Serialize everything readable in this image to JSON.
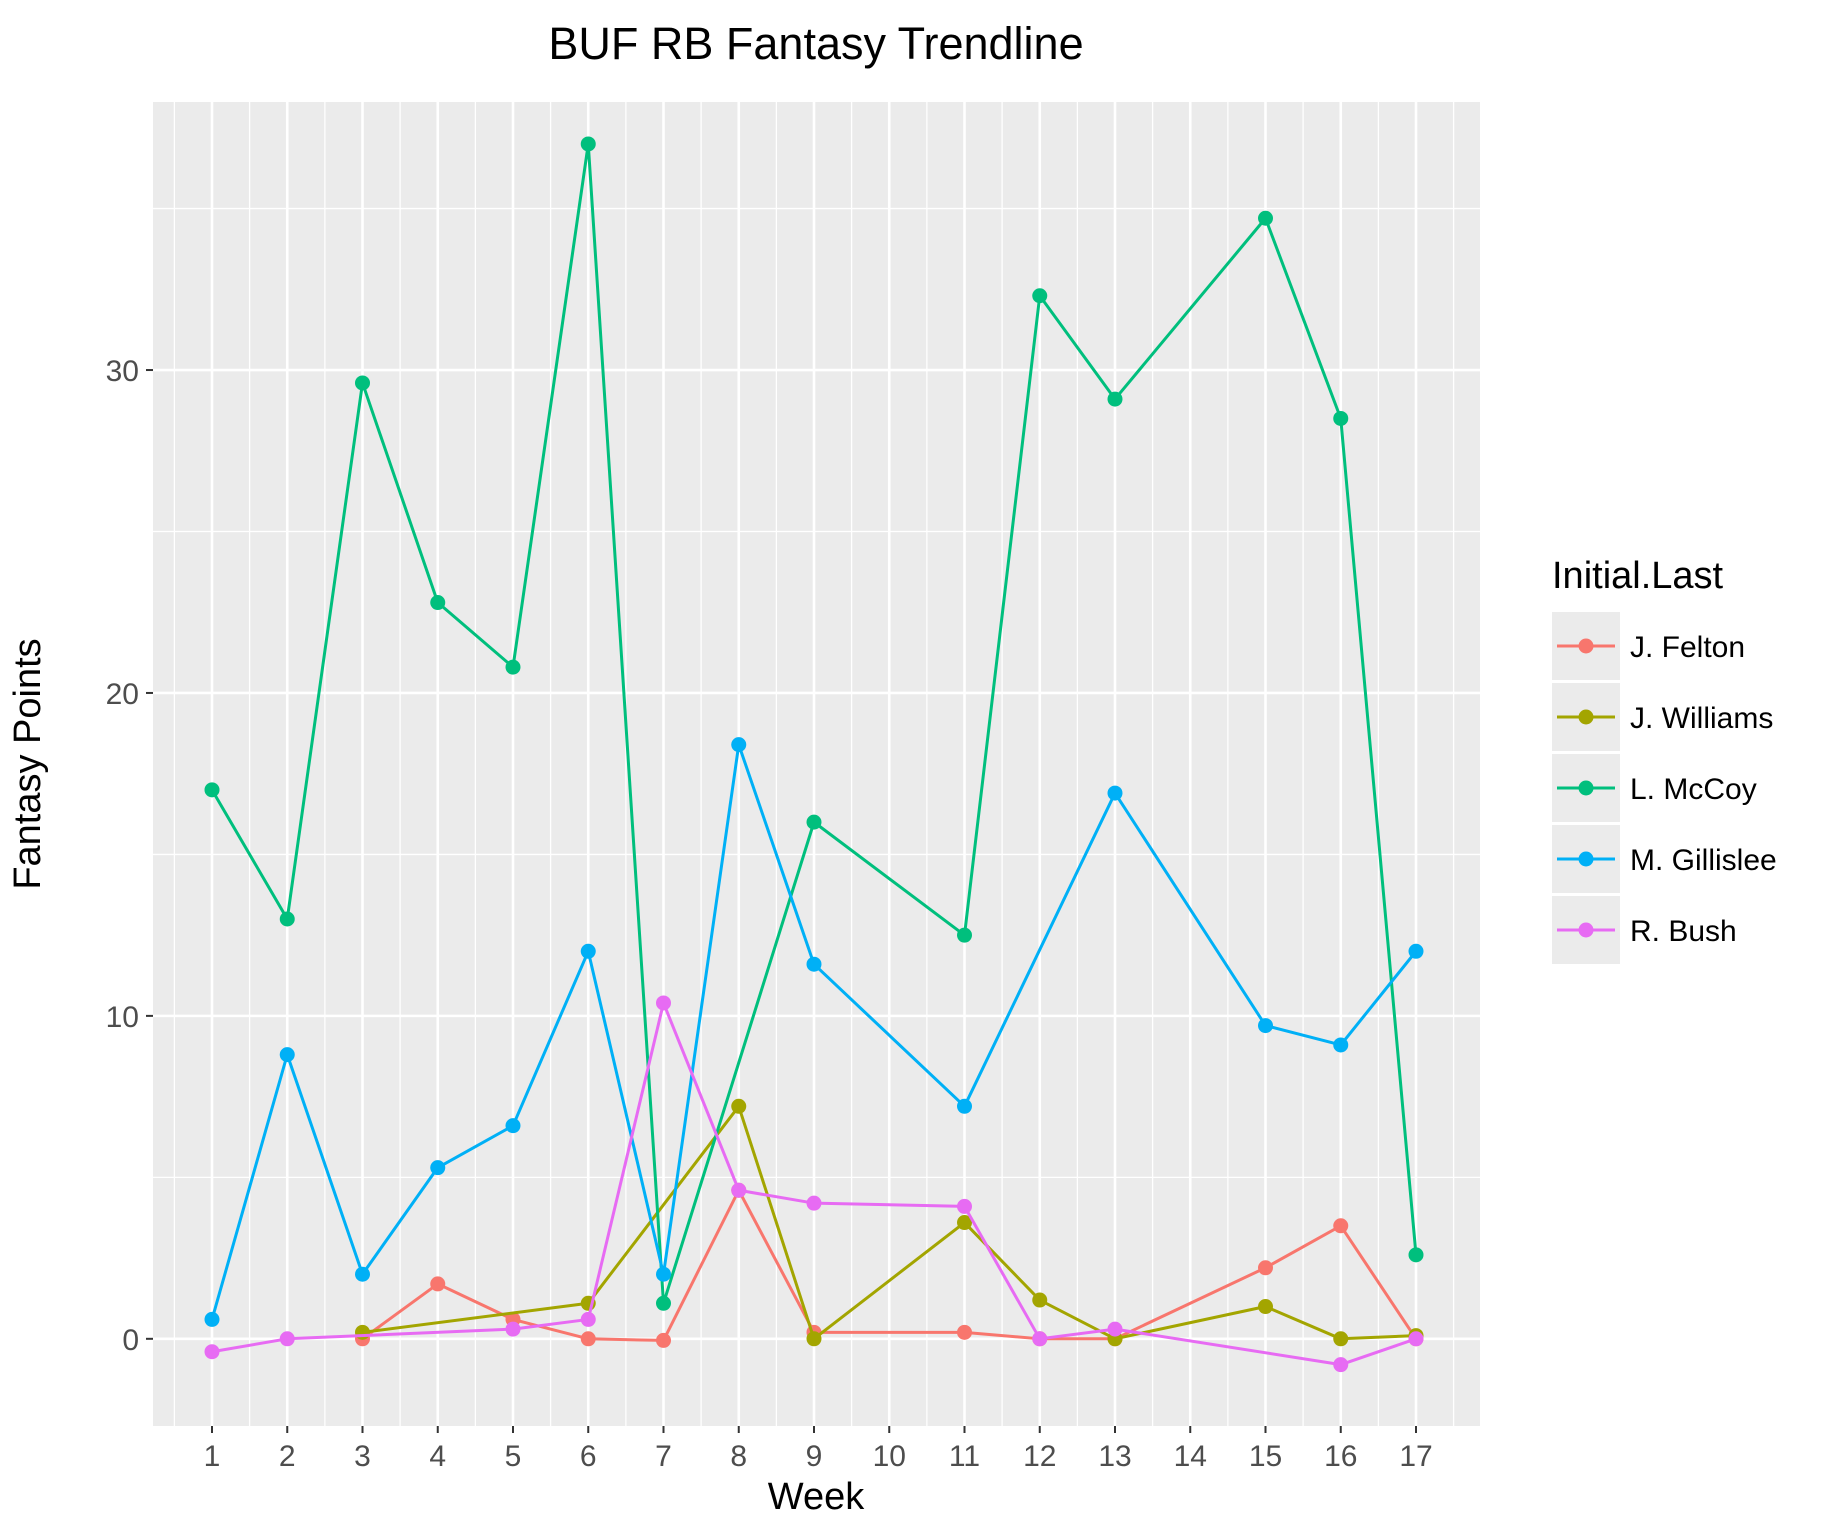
{
  "chart_data": {
    "type": "line",
    "title": "BUF RB Fantasy Trendline",
    "xlabel": "Week",
    "ylabel": "Fantasy Points",
    "categories": [
      "1",
      "2",
      "3",
      "4",
      "5",
      "6",
      "7",
      "8",
      "9",
      "10",
      "11",
      "12",
      "13",
      "14",
      "15",
      "16",
      "17"
    ],
    "ylim": [
      -2.7,
      38.3
    ],
    "yticks": [
      0,
      10,
      20,
      30
    ],
    "grid": true,
    "legend": {
      "title": "Initial.Last",
      "placement": "right"
    },
    "series": [
      {
        "name": "J. Felton",
        "color": "#F8766D",
        "points": [
          [
            "3",
            0.0
          ],
          [
            "4",
            1.7
          ],
          [
            "5",
            0.6
          ],
          [
            "6",
            0.0
          ],
          [
            "7",
            -0.05
          ],
          [
            "8",
            4.6
          ],
          [
            "9",
            0.2
          ],
          [
            "11",
            0.2
          ],
          [
            "12",
            0.0
          ],
          [
            "13",
            0.0
          ],
          [
            "15",
            2.2
          ],
          [
            "16",
            3.5
          ],
          [
            "17",
            0.0
          ]
        ]
      },
      {
        "name": "J. Williams",
        "color": "#A3A500",
        "points": [
          [
            "3",
            0.2
          ],
          [
            "6",
            1.1
          ],
          [
            "8",
            7.2
          ],
          [
            "9",
            0.0
          ],
          [
            "11",
            3.6
          ],
          [
            "12",
            1.2
          ],
          [
            "13",
            0.0
          ],
          [
            "15",
            1.0
          ],
          [
            "16",
            0.0
          ],
          [
            "17",
            0.1
          ]
        ]
      },
      {
        "name": "L. McCoy",
        "color": "#00BF7D",
        "points": [
          [
            "1",
            17.0
          ],
          [
            "2",
            13.0
          ],
          [
            "3",
            29.6
          ],
          [
            "4",
            22.8
          ],
          [
            "5",
            20.8
          ],
          [
            "6",
            37.0
          ],
          [
            "7",
            1.1
          ],
          [
            "9",
            16.0
          ],
          [
            "11",
            12.5
          ],
          [
            "12",
            32.3
          ],
          [
            "13",
            29.1
          ],
          [
            "15",
            34.7
          ],
          [
            "16",
            28.5
          ],
          [
            "17",
            2.6
          ]
        ]
      },
      {
        "name": "M. Gillislee",
        "color": "#00B0F6",
        "points": [
          [
            "1",
            0.6
          ],
          [
            "2",
            8.8
          ],
          [
            "3",
            2.0
          ],
          [
            "4",
            5.3
          ],
          [
            "5",
            6.6
          ],
          [
            "6",
            12.0
          ],
          [
            "7",
            2.0
          ],
          [
            "8",
            18.4
          ],
          [
            "9",
            11.6
          ],
          [
            "11",
            7.2
          ],
          [
            "13",
            16.9
          ],
          [
            "15",
            9.7
          ],
          [
            "16",
            9.1
          ],
          [
            "17",
            12.0
          ]
        ]
      },
      {
        "name": "R. Bush",
        "color": "#E76BF3",
        "points": [
          [
            "1",
            -0.4
          ],
          [
            "2",
            0.0
          ],
          [
            "5",
            0.3
          ],
          [
            "6",
            0.6
          ],
          [
            "7",
            10.4
          ],
          [
            "8",
            4.6
          ],
          [
            "9",
            4.2
          ],
          [
            "11",
            4.1
          ],
          [
            "12",
            0.0
          ],
          [
            "13",
            0.3
          ],
          [
            "16",
            -0.8
          ],
          [
            "17",
            0.0
          ]
        ]
      }
    ]
  }
}
